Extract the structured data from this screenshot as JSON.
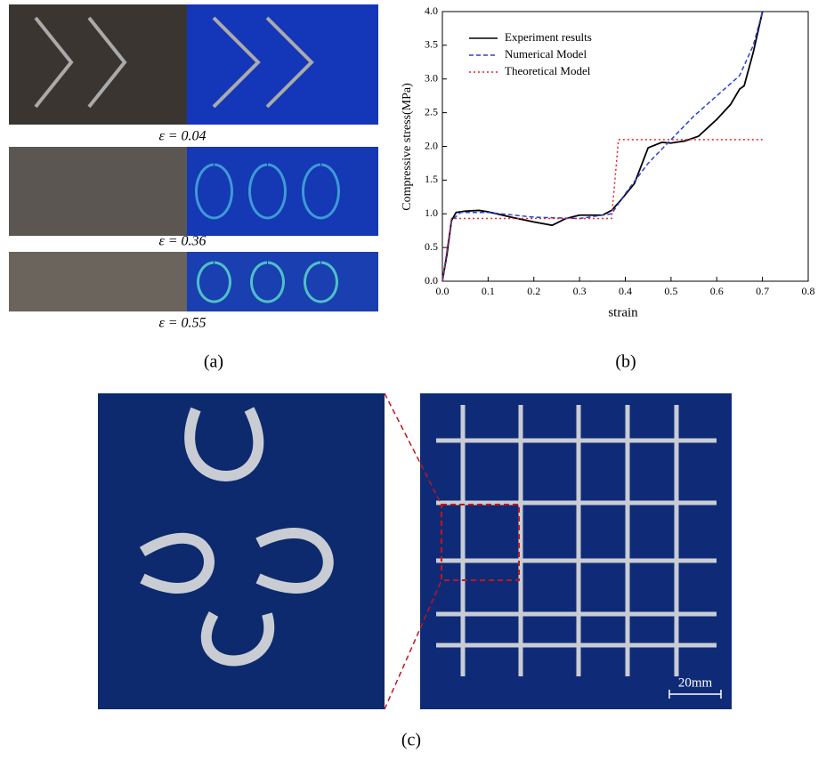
{
  "panel_a": {
    "strain_labels": [
      "ε = 0.04",
      "ε = 0.36",
      "ε = 0.55"
    ],
    "label": "(a)"
  },
  "panel_b": {
    "label": "(b)"
  },
  "panel_c": {
    "label": "(c)",
    "scale_bar": "20mm"
  },
  "chart_data": {
    "type": "line",
    "x_label": "strain",
    "y_label": "Compressive stress(MPa)",
    "xlim": [
      0,
      0.8
    ],
    "ylim": [
      0,
      4
    ],
    "xticks": [
      {
        "value": 0,
        "label": "0.0"
      },
      0.1,
      0.2,
      0.3,
      0.4,
      0.5,
      0.6,
      0.7,
      0.8
    ],
    "yticks": [
      {
        "value": 0,
        "label": "0.0"
      },
      0.5,
      {
        "value": 1,
        "label": "1.0"
      },
      1.5,
      {
        "value": 2,
        "label": "2.0"
      },
      2.5,
      {
        "value": 3,
        "label": "3.0"
      },
      3.5,
      {
        "value": 4,
        "label": "4.0"
      }
    ],
    "grid": false,
    "legend": "upper left",
    "series": [
      {
        "name": "Experiment results",
        "color": "#000000",
        "style": "solid",
        "x": [
          0,
          0.01,
          0.02,
          0.03,
          0.05,
          0.08,
          0.1,
          0.15,
          0.2,
          0.24,
          0.27,
          0.3,
          0.35,
          0.37,
          0.39,
          0.42,
          0.45,
          0.48,
          0.5,
          0.53,
          0.56,
          0.6,
          0.63,
          0.65,
          0.66,
          0.68,
          0.7
        ],
        "values": [
          0,
          0.4,
          0.9,
          1.02,
          1.04,
          1.05,
          1.03,
          0.95,
          0.88,
          0.83,
          0.93,
          0.98,
          0.98,
          1.05,
          1.2,
          1.45,
          1.98,
          2.06,
          2.05,
          2.08,
          2.15,
          2.4,
          2.62,
          2.85,
          2.9,
          3.4,
          4.0
        ]
      },
      {
        "name": "Numerical Model",
        "color": "#2b3fd6",
        "style": "dashed",
        "x": [
          0,
          0.02,
          0.04,
          0.1,
          0.2,
          0.3,
          0.37,
          0.4,
          0.45,
          0.5,
          0.55,
          0.6,
          0.65,
          0.68,
          0.7
        ],
        "values": [
          0,
          0.9,
          1.02,
          1.02,
          0.95,
          0.93,
          1.0,
          1.3,
          1.75,
          2.1,
          2.45,
          2.75,
          3.05,
          3.5,
          4.0
        ]
      },
      {
        "name": "Theoretical Model",
        "color": "#e8231f",
        "style": "dotted",
        "x": [
          0,
          0.02,
          0.37,
          0.385,
          0.7
        ],
        "values": [
          0,
          0.93,
          0.93,
          2.1,
          2.1
        ]
      }
    ]
  }
}
